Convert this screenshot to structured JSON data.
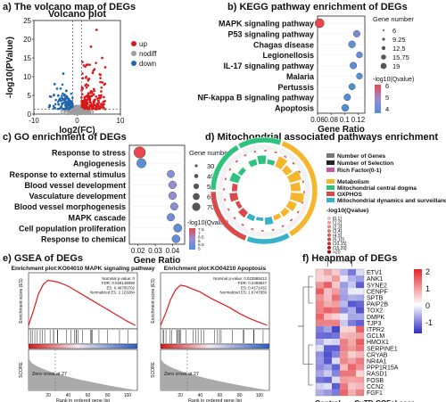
{
  "panel_a": {
    "label": "a) The volcano map of DEGs",
    "title": "Volcano plot",
    "xlabel": "log2(FC)",
    "ylabel": "-log10(PValue)",
    "legend": [
      {
        "name": "up",
        "color": "#d7191c"
      },
      {
        "name": "nodiff",
        "color": "#9e9e9e"
      },
      {
        "name": "down",
        "color": "#2166ac"
      }
    ]
  },
  "panel_b": {
    "label": "b) KEGG pathway enrichment of DEGs",
    "xlabel": "Gene Ratio",
    "size_title": "Gene number",
    "size_values": [
      "6",
      "9.25",
      "12.5",
      "15.75",
      "19"
    ],
    "color_title": "-log10(Qvalue)"
  },
  "panel_c": {
    "label": "c) GO enrichment of DEGs",
    "xlabel": "Gene Ratio",
    "size_title": "Gene numbe",
    "size_values": [
      "30",
      "40",
      "50",
      "60",
      "70"
    ],
    "color_title": "-log10(Qvalue)"
  },
  "panel_d": {
    "label": "d) Mitochondrial associated pathways enrichment",
    "legend_top": [
      "Number of Genes",
      "Number of Selection",
      "Rich Factor(0-1)"
    ],
    "legend_categories": [
      {
        "name": "Metabolism",
        "color": "#f5b62e"
      },
      {
        "name": "Mitochondrial central dogma",
        "color": "#2ec27e"
      },
      {
        "name": "OXPHOS",
        "color": "#d94a4a"
      },
      {
        "name": "Mitochondrial dynamics and surveillance",
        "color": "#38b2c8"
      }
    ],
    "q_title": "-log10(Qvalue)",
    "q_bins": [
      "[0,1]",
      "(1,2]",
      "(2,3]",
      "(3,4]",
      "(4,5]",
      "(5,10]",
      "(10,15]",
      "(15,20]",
      ">20"
    ]
  },
  "panel_e": {
    "label": "e) GSEA of DEGs",
    "left": {
      "title": "Enrichment plot:KO04010 MAPK signaling pathway",
      "stats": [
        "Nominal p-value: 0",
        "FDR: 0.028149059",
        "ES: 0.46705702",
        "Normalized ES: 2.123284"
      ],
      "ylabel_top": "Enrichment score (ES)",
      "ylabel_bottom": "SCORE",
      "zero_cross": "Zero cross at 27",
      "xlabel": "Rank in ordered gene list"
    },
    "right": {
      "title": "Enrichment plot:KO04210 Apoptosis",
      "stats": [
        "Nominal p-value: 0.023589413",
        "FDR: 0.2469927",
        "ES: 0.4171432",
        "Normalized ES: 1.6747959"
      ],
      "ylabel_top": "Enrichment score (ES)",
      "ylabel_bottom": "SCORE",
      "zero_cross": "Zero cross at 27",
      "xlabel": "Rank in ordered gene list"
    }
  },
  "panel_f": {
    "label": "f) Heapmap of DEGs",
    "genes": [
      "ETV1",
      "ANK1",
      "SYNE2",
      "CENPF",
      "SPTB",
      "PAIP2B",
      "TOX2",
      "DMPK",
      "TJP3",
      "ITPR2",
      "GCLM",
      "HMOX1",
      "SERPINE1",
      "CRYAB",
      "NR4A1",
      "PPP1R15A",
      "RASD1",
      "FOSB",
      "CCN2",
      "FGF1"
    ],
    "groups": [
      "Control",
      "CuTD-COF+Laser"
    ],
    "scale": [
      "2",
      "1",
      "0",
      "-1"
    ]
  },
  "chart_data": [
    {
      "type": "scatter",
      "id": "volcano",
      "title": "Volcano plot",
      "xlabel": "log2(FC)",
      "ylabel": "-log10(PValue)",
      "xlim": [
        -10,
        10
      ],
      "ylim": [
        0,
        25
      ],
      "x_ticks": [
        "-10",
        "0",
        "10"
      ],
      "y_ticks": [
        "0",
        "5",
        "10",
        "15",
        "20",
        "25"
      ]
    },
    {
      "type": "scatter",
      "id": "kegg",
      "xlabel": "Gene Ratio",
      "x_ticks": [
        "0.06",
        "0.08",
        "0.1",
        "0.12"
      ],
      "xlim": [
        0.06,
        0.13
      ],
      "categories": [
        "MAPK signaling pathway",
        "P53 signaling pathway",
        "Chagas disease",
        "Legionellosis",
        "IL-17 signaling pathway",
        "Malaria",
        "Pertussis",
        "NF-kappa B signaling pathway",
        "Apoptosis"
      ],
      "gene_ratio": [
        0.063,
        0.118,
        0.111,
        0.122,
        0.113,
        0.122,
        0.111,
        0.104,
        0.101
      ],
      "gene_number": [
        19,
        8,
        9,
        6,
        8,
        6,
        7,
        8,
        9
      ],
      "color_ticks": [
        "6",
        "5",
        "4"
      ],
      "neg_log10_q": [
        6.0,
        4.5,
        4.3,
        4.2,
        4.1,
        4.1,
        4.0,
        3.9,
        3.9
      ]
    },
    {
      "type": "scatter",
      "id": "go",
      "xlabel": "Gene Ratio",
      "x_ticks": [
        "0.02",
        "0.03",
        "0.04"
      ],
      "xlim": [
        0.015,
        0.047
      ],
      "categories": [
        "Response to stress",
        "Angiogenesis",
        "Response to external stimulus",
        "Blood vessel development",
        "Vasculature development",
        "Blood vessel morphogenesis",
        "MAPK cascade",
        "Cell population proliferation",
        "Response to chemical"
      ],
      "gene_ratio": [
        0.021,
        0.022,
        0.039,
        0.04,
        0.04,
        0.041,
        0.039,
        0.043,
        0.042
      ],
      "gene_number": [
        70,
        42,
        22,
        25,
        25,
        23,
        24,
        30,
        28
      ],
      "color_ticks": [
        "7.5",
        "7",
        "6.5",
        "6",
        "5.5",
        "5"
      ],
      "neg_log10_q": [
        7.6,
        5.2,
        6.0,
        6.3,
        6.2,
        6.0,
        5.6,
        5.3,
        5.4
      ]
    },
    {
      "type": "line",
      "id": "gsea_mapk",
      "title": "Enrichment plot:KO04010 MAPK signaling pathway",
      "xlabel": "Rank in ordered gene list",
      "x_ticks": [
        "20",
        "40",
        "60",
        "80",
        "100"
      ],
      "xlim": [
        0,
        110
      ],
      "x": [
        0,
        5,
        10,
        15,
        20,
        25,
        30,
        40,
        50,
        60,
        70,
        80,
        90,
        100,
        108
      ],
      "es": [
        0.0,
        0.15,
        0.32,
        0.42,
        0.46,
        0.45,
        0.44,
        0.4,
        0.34,
        0.28,
        0.22,
        0.16,
        0.1,
        0.04,
        0.0
      ]
    },
    {
      "type": "line",
      "id": "gsea_apoptosis",
      "title": "Enrichment plot:KO04210 Apoptosis",
      "xlabel": "Rank in ordered gene list",
      "x_ticks": [
        "20",
        "40",
        "60",
        "80",
        "100"
      ],
      "xlim": [
        0,
        110
      ],
      "x": [
        0,
        5,
        10,
        15,
        20,
        25,
        30,
        40,
        50,
        60,
        70,
        80,
        90,
        100,
        108
      ],
      "es": [
        0.0,
        0.12,
        0.26,
        0.36,
        0.41,
        0.4,
        0.38,
        0.34,
        0.28,
        0.23,
        0.18,
        0.12,
        0.07,
        0.03,
        0.0
      ]
    }
  ]
}
